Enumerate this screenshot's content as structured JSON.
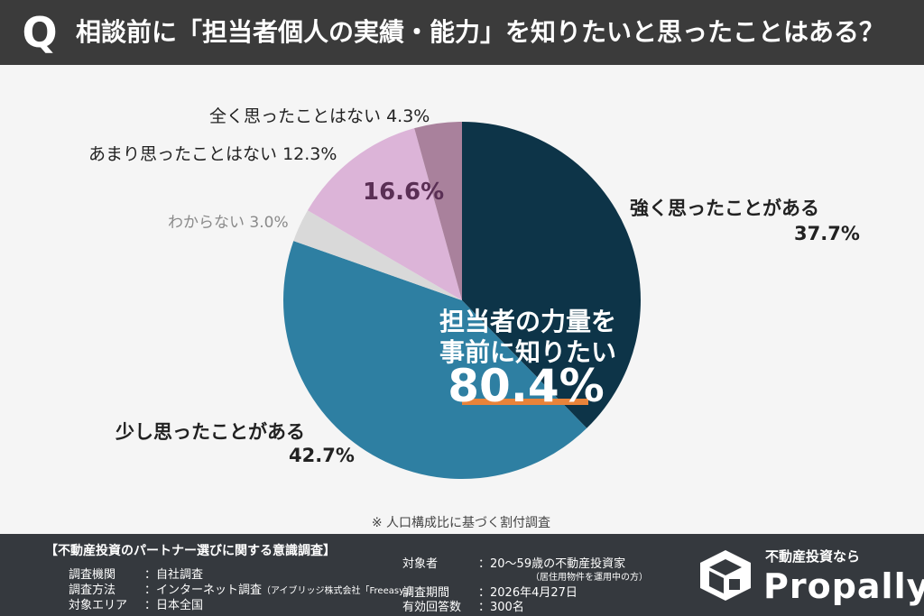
{
  "header": {
    "q_mark": "Q",
    "title": "相談前に「担当者個人の実績・能力」を知りたいと思ったことはある？"
  },
  "chart_data": {
    "type": "pie",
    "start_angle_deg": 0,
    "direction": "clockwise",
    "slices": [
      {
        "label": "強く思ったことがある",
        "value": 37.7,
        "value_text": "37.7%",
        "color": "#0d3448"
      },
      {
        "label": "少し思ったことがある",
        "value": 42.7,
        "value_text": "42.7%",
        "color": "#2e7fa2"
      },
      {
        "label": "わからない",
        "value": 3.0,
        "value_text": "3.0%",
        "color": "#d9d9d9"
      },
      {
        "label": "あまり思ったことはない",
        "value": 12.3,
        "value_text": "12.3%",
        "color": "#dcb4d8"
      },
      {
        "label": "全く思ったことはない",
        "value": 4.3,
        "value_text": "4.3%",
        "color": "#a9819c"
      }
    ],
    "combined_negative_text": "16.6%",
    "center_label_line1": "担当者の力量を",
    "center_label_line2": "事前に知りたい",
    "center_value": "80.4%"
  },
  "note": "※ 人口構成比に基づく割付調査",
  "footer": {
    "survey_title": "【不動産投資のパートナー選びに関する意識調査】",
    "left_rows": [
      {
        "key": "調査機関",
        "value": "：自社調査"
      },
      {
        "key": "調査方法",
        "value": "：インターネット調査",
        "sub": "（アイブリッジ株式会社「Freeasy」）"
      },
      {
        "key": "対象エリア",
        "value": "：日本全国"
      }
    ],
    "right_rows": [
      {
        "key": "対象者",
        "value": "：20〜59歳の不動産投資家",
        "sub": "（居住用物件を運用中の方）"
      },
      {
        "key": "調査期間",
        "value": "：2026年4月27日"
      },
      {
        "key": "有効回答数",
        "value": "：300名"
      }
    ],
    "logo_tagline": "不動産投資なら",
    "logo_name": "Propally"
  },
  "colors": {
    "header_bg": "#3b3b3b",
    "footer_bg": "#35393e",
    "accent_underline": "#e8833a"
  }
}
